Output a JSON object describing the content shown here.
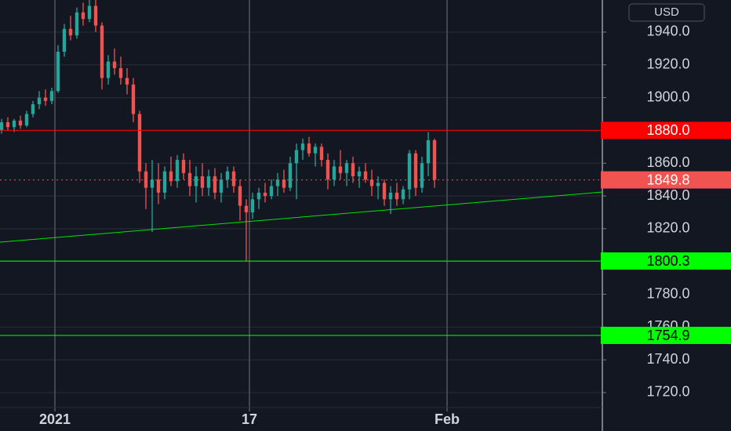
{
  "chart_data": {
    "type": "candlestick",
    "currency": "USD",
    "up_color": "#26a69a",
    "down_color": "#ef5350",
    "xlim": [
      -0.25,
      95.75
    ],
    "ylim": [
      1710.9,
      1959.6
    ],
    "xticks": [
      {
        "value": 8.5,
        "label": "2021"
      },
      {
        "value": 39.5,
        "label": "17"
      },
      {
        "value": 71,
        "label": "Feb"
      }
    ],
    "yticks": [
      {
        "value": 1720,
        "label": "1720.0"
      },
      {
        "value": 1740,
        "label": "1740.0"
      },
      {
        "value": 1760,
        "label": "1760.0"
      },
      {
        "value": 1780,
        "label": "1780.0"
      },
      {
        "value": 1800,
        "label": "1800.0"
      },
      {
        "value": 1820,
        "label": "1820.0"
      },
      {
        "value": 1840,
        "label": "1840.0"
      },
      {
        "value": 1860,
        "label": "1860.0"
      },
      {
        "value": 1880,
        "label": "1880.0"
      },
      {
        "value": 1900,
        "label": "1900.0"
      },
      {
        "value": 1920,
        "label": "1920.0"
      },
      {
        "value": 1940,
        "label": "1940.0"
      }
    ],
    "grid": true,
    "open": [
      1880,
      1885,
      1882,
      1886,
      1883,
      1890,
      1896,
      1900,
      1898,
      1904,
      1928,
      1942,
      1938,
      1952,
      1948,
      1956,
      1944,
      1912,
      1922,
      1918,
      1912,
      1908,
      1890,
      1855,
      1845,
      1850,
      1842,
      1855,
      1849,
      1862,
      1854,
      1846,
      1852,
      1845,
      1852,
      1842,
      1850,
      1855,
      1846,
      1834,
      1830,
      1838,
      1842,
      1840,
      1846,
      1850,
      1845,
      1860,
      1868,
      1872,
      1866,
      1870,
      1862,
      1850,
      1858,
      1854,
      1860,
      1852,
      1855,
      1850,
      1846,
      1848,
      1838,
      1842,
      1838,
      1844,
      1866,
      1845,
      1860,
      1874
    ],
    "high": [
      1887,
      1888,
      1887,
      1889,
      1892,
      1898,
      1904,
      1905,
      1906,
      1932,
      1945,
      1950,
      1955,
      1958,
      1960,
      1960,
      1946,
      1926,
      1930,
      1925,
      1918,
      1912,
      1892,
      1860,
      1862,
      1860,
      1858,
      1864,
      1865,
      1866,
      1862,
      1858,
      1860,
      1856,
      1857,
      1854,
      1858,
      1858,
      1850,
      1838,
      1842,
      1845,
      1848,
      1850,
      1854,
      1856,
      1864,
      1872,
      1875,
      1876,
      1872,
      1872,
      1866,
      1862,
      1868,
      1862,
      1864,
      1858,
      1860,
      1856,
      1852,
      1850,
      1846,
      1848,
      1846,
      1868,
      1868,
      1864,
      1879,
      1875
    ],
    "low": [
      1878,
      1880,
      1879,
      1881,
      1882,
      1888,
      1893,
      1895,
      1896,
      1903,
      1925,
      1935,
      1936,
      1944,
      1946,
      1940,
      1905,
      1908,
      1914,
      1908,
      1902,
      1885,
      1848,
      1832,
      1818,
      1835,
      1838,
      1846,
      1845,
      1850,
      1840,
      1836,
      1840,
      1840,
      1838,
      1836,
      1845,
      1842,
      1825,
      1800.3,
      1826,
      1832,
      1836,
      1838,
      1840,
      1842,
      1843,
      1838,
      1862,
      1864,
      1858,
      1858,
      1844,
      1846,
      1850,
      1846,
      1848,
      1845,
      1848,
      1840,
      1838,
      1834,
      1829,
      1834,
      1835,
      1838,
      1840,
      1842,
      1852,
      1845
    ],
    "close": [
      1885,
      1882,
      1886,
      1883,
      1890,
      1896,
      1900,
      1898,
      1904,
      1928,
      1942,
      1938,
      1952,
      1948,
      1956,
      1944,
      1912,
      1922,
      1918,
      1912,
      1908,
      1890,
      1855,
      1845,
      1850,
      1842,
      1855,
      1849,
      1862,
      1854,
      1846,
      1852,
      1845,
      1852,
      1842,
      1850,
      1855,
      1846,
      1834,
      1830,
      1838,
      1842,
      1840,
      1846,
      1850,
      1845,
      1860,
      1868,
      1872,
      1866,
      1870,
      1862,
      1850,
      1858,
      1854,
      1860,
      1852,
      1855,
      1850,
      1846,
      1848,
      1838,
      1842,
      1838,
      1844,
      1866,
      1845,
      1860,
      1874,
      1849.8
    ],
    "levels": [
      {
        "value": 1880,
        "label": "1880.0",
        "color": "#ff0000",
        "text_color": "#ffffff",
        "style": "solid"
      },
      {
        "value": 1849.8,
        "label": "1849.8",
        "color": "#f05350",
        "text_color": "#ffffff",
        "style": "dotted"
      },
      {
        "value": 1800.3,
        "label": "1800.3",
        "color": "#00ff00",
        "text_color": "#000000",
        "style": "solid"
      },
      {
        "value": 1754.9,
        "label": "1754.9",
        "color": "#00ff00",
        "text_color": "#000000",
        "style": "solid"
      }
    ],
    "trendline": {
      "x": [
        -0.25,
        95.75
      ],
      "y": [
        1811.8,
        1842.4
      ],
      "color": "#00e600"
    }
  }
}
